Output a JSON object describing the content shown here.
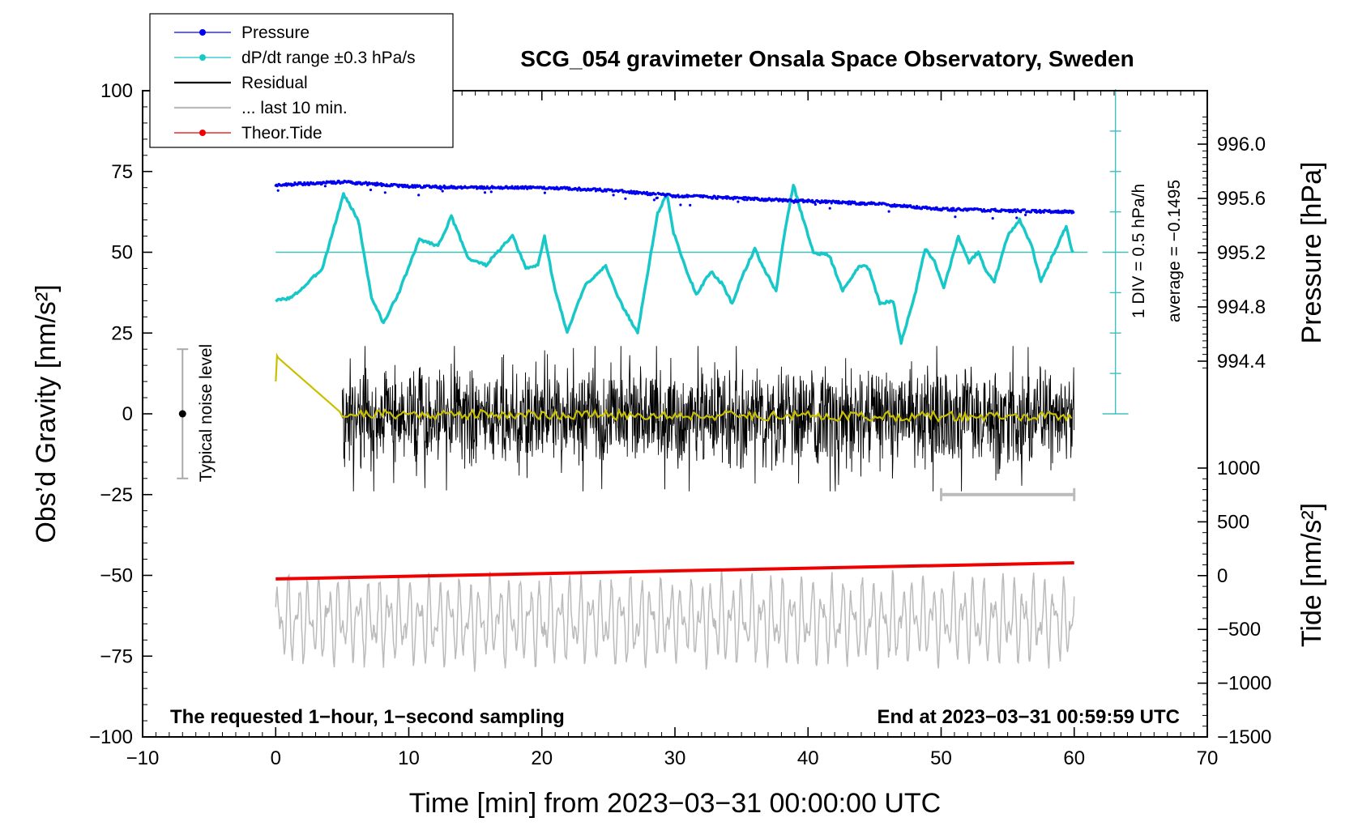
{
  "chart_data": {
    "type": "line",
    "title": "SCG_054 gravimeter Onsala Space Observatory, Sweden",
    "xlabel": "Time [min] from 2023−03−31 00:00:00 UTC",
    "ylabel_left": "Obs’d Gravity [nm/s²]",
    "ylabel_pressure": "Pressure [hPa]",
    "ylabel_tide": "Tide [nm/s²]",
    "xlim": [
      -10,
      70
    ],
    "ylim_left": [
      -100,
      100
    ],
    "x_ticks": [
      "−10",
      "0",
      "10",
      "20",
      "30",
      "40",
      "50",
      "60",
      "70"
    ],
    "y_left_ticks": [
      "100",
      "75",
      "50",
      "25",
      "0",
      "−25",
      "−50",
      "−75",
      "−100"
    ],
    "pressure_ticks": [
      "996.0",
      "995.6",
      "995.2",
      "994.8",
      "994.4"
    ],
    "tide_ticks": [
      "1000",
      "500",
      "0",
      "−500",
      "−1000",
      "−1500"
    ],
    "legend": [
      {
        "name": "Pressure",
        "color": "#0000ee",
        "marker": true
      },
      {
        "name": "dP/dt range ±0.3 hPa/s",
        "color": "#18c8c8",
        "marker": true
      },
      {
        "name": "Residual",
        "color": "#000000",
        "marker": false
      },
      {
        "name": "... last 10 min.",
        "color": "#bbbbbb",
        "marker": false
      },
      {
        "name": "Theor.Tide",
        "color": "#ee0000",
        "marker": true
      }
    ],
    "annotations": {
      "noise_label": "Typical noise level",
      "scale_label": "1 DIV = 0.5 hPa/h",
      "average_label": "average = −0.1495",
      "left_note": "The requested 1−hour, 1−second sampling",
      "right_note": "End at 2023−03−31 00:59:59 UTC"
    },
    "series": [
      {
        "name": "Pressure",
        "units": "hPa",
        "x": [
          0,
          5,
          10,
          15,
          20,
          25,
          30,
          35,
          40,
          45,
          50,
          55,
          60
        ],
        "values": [
          995.7,
          995.72,
          995.69,
          995.68,
          995.68,
          995.66,
          995.62,
          995.6,
          995.58,
          995.56,
          995.52,
          995.51,
          995.5
        ]
      },
      {
        "name": "dP/dt range ±0.3 hPa/s",
        "units": "display (left axis)",
        "x": [
          0,
          1.2,
          2.3,
          3.5,
          5.1,
          6.2,
          7.2,
          8.1,
          9.3,
          10.8,
          12.2,
          13.2,
          14.5,
          15.8,
          17.1,
          17.8,
          18.8,
          19.7,
          20.2,
          20.9,
          21.9,
          22.6,
          23.3,
          24.8,
          25.7,
          27.2,
          27.8,
          28.7,
          29.4,
          29.9,
          30.9,
          31.6,
          32.7,
          33.6,
          34.3,
          35.1,
          36.0,
          36.8,
          37.6,
          38.2,
          38.9,
          39.5,
          40.4,
          41.6,
          42.6,
          43.9,
          44.6,
          45.4,
          46.4,
          47.0,
          48.1,
          48.8,
          49.5,
          50.2,
          51.3,
          52.1,
          52.8,
          53.3,
          54.0,
          55.0,
          55.9,
          56.8,
          57.5,
          58.5,
          59.4,
          60.0
        ],
        "values": [
          35,
          36,
          40,
          45,
          68,
          60,
          36,
          28,
          38,
          54,
          52,
          61,
          48,
          46,
          52,
          55,
          45,
          46,
          55,
          40,
          25,
          33,
          40,
          46,
          36,
          25,
          40,
          62,
          68,
          56,
          44,
          37,
          44,
          40,
          34,
          43,
          51,
          44,
          38,
          55,
          71,
          62,
          50,
          49,
          38,
          46,
          45,
          34,
          35,
          22,
          38,
          51,
          47,
          39,
          55,
          47,
          50,
          45,
          41,
          55,
          60,
          52,
          41,
          50,
          58,
          48
        ]
      },
      {
        "name": "Residual",
        "units": "nm/s²",
        "x_range": [
          5,
          60
        ],
        "typical_amplitude": 10,
        "peak_min": -24,
        "peak_max": 21
      },
      {
        "name": "Yellow mean trace",
        "units": "nm/s²",
        "x": [
          0,
          5,
          60
        ],
        "values": [
          18,
          0,
          -1
        ]
      },
      {
        "name": "... last 10 min.",
        "units": "nm/s²",
        "x_range": [
          0,
          60
        ],
        "mean": -64,
        "range": [
          -80,
          -41
        ]
      },
      {
        "name": "Theor.Tide",
        "units": "nm/s²",
        "x": [
          0,
          60
        ],
        "values": [
          -31,
          119
        ]
      }
    ],
    "noise_level_bar": {
      "x": -7,
      "center": 0,
      "range": [
        -20,
        20
      ]
    },
    "last10_bar": {
      "x_range": [
        50,
        60
      ],
      "y": -25
    },
    "dPdt_reference_level": 50
  }
}
